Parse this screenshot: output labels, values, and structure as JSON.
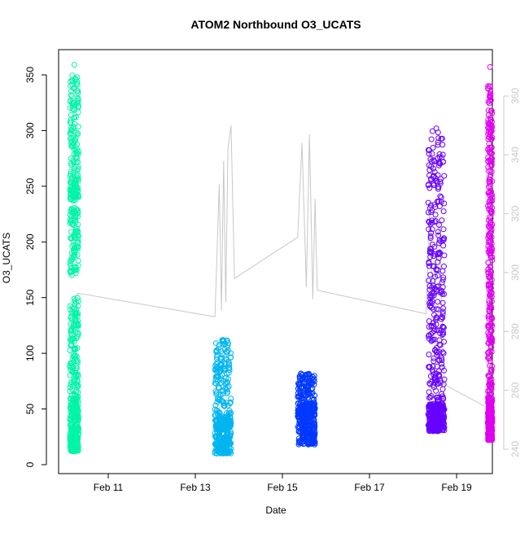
{
  "chart_data": {
    "type": "scatter",
    "title": "ATOM2 Northbound O3_UCATS",
    "xlabel": "Date",
    "ylabel": "O3_UCATS",
    "x_ticks": [
      "Feb 11",
      "Feb 13",
      "Feb 15",
      "Feb 17",
      "Feb 19"
    ],
    "x_tick_values": [
      11,
      13,
      15,
      17,
      19
    ],
    "xlim": [
      9.98,
      20.88
    ],
    "ylim": [
      0,
      350
    ],
    "y_ticks": [
      0,
      50,
      100,
      150,
      200,
      250,
      300,
      350
    ],
    "y2_ticks": [
      240,
      260,
      280,
      300,
      320,
      340,
      360
    ],
    "y2lim": [
      240,
      360
    ],
    "grid": false,
    "series": [
      {
        "color": "#00f5a8",
        "x_range": [
          10.12,
          10.32
        ],
        "y_ranges": [
          [
            12,
            60
          ],
          [
            60,
            150
          ],
          [
            170,
            260
          ],
          [
            240,
            350
          ]
        ],
        "y_max": 359
      },
      {
        "color": "#00b5f0",
        "x_range": [
          13.45,
          13.82
        ],
        "y_ranges": [
          [
            10,
            45
          ],
          [
            40,
            112
          ]
        ],
        "y_max": 112
      },
      {
        "color": "#0038ff",
        "x_range": [
          15.35,
          15.75
        ],
        "y_ranges": [
          [
            18,
            55
          ],
          [
            45,
            82
          ]
        ],
        "y_max": 81
      },
      {
        "color": "#6600ff",
        "x_range": [
          18.35,
          18.72
        ],
        "y_ranges": [
          [
            30,
            55
          ],
          [
            55,
            160
          ],
          [
            160,
            300
          ]
        ],
        "y_max": 302
      },
      {
        "color": "#e000f0",
        "x_range": [
          19.72,
          19.82
        ],
        "y_ranges": [
          [
            22,
            60
          ],
          [
            60,
            200
          ],
          [
            200,
            340
          ]
        ],
        "y_max": 357
      }
    ],
    "secondary_line": {
      "color": "#c8c8c8",
      "axis": "right",
      "points": [
        [
          10.15,
          290
        ],
        [
          10.3,
          293
        ],
        [
          13.45,
          285
        ],
        [
          13.55,
          330
        ],
        [
          13.6,
          287
        ],
        [
          13.65,
          338
        ],
        [
          13.7,
          290
        ],
        [
          13.75,
          342
        ],
        [
          13.82,
          350
        ],
        [
          13.9,
          298
        ],
        [
          15.35,
          312
        ],
        [
          15.45,
          344
        ],
        [
          15.55,
          295
        ],
        [
          15.62,
          347
        ],
        [
          15.7,
          291
        ],
        [
          15.75,
          325
        ],
        [
          15.8,
          294
        ],
        [
          18.3,
          286
        ],
        [
          18.38,
          321
        ],
        [
          18.45,
          290
        ],
        [
          18.6,
          318
        ],
        [
          18.72,
          262
        ],
        [
          19.72,
          254
        ],
        [
          19.78,
          306
        ],
        [
          19.82,
          244
        ]
      ]
    }
  }
}
